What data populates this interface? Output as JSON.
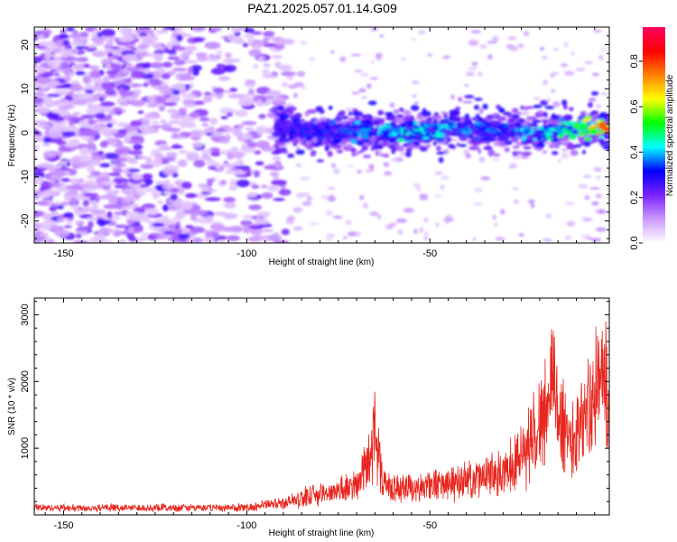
{
  "title": "PAZ1.2025.057.01.14.G09",
  "chart_data": [
    {
      "type": "heatmap",
      "xlabel": "Height of straight line (km)",
      "ylabel": "Frequency (Hz)",
      "xlim": [
        -158,
        -1
      ],
      "ylim": [
        -25,
        24
      ],
      "xticks": [
        -150,
        -100,
        -50
      ],
      "yticks": [
        -20,
        -10,
        0,
        10,
        20
      ],
      "colorbar": {
        "label": "Normalized spectral amplitude",
        "range": [
          0,
          0.95
        ],
        "ticks": [
          "0.0",
          "0.2",
          "0.4",
          "0.6",
          "0.8"
        ],
        "tick_values": [
          0.0,
          0.2,
          0.4,
          0.6,
          0.8
        ],
        "colors": [
          "#ffffff",
          "#cc99ff",
          "#7a22ff",
          "#0000ff",
          "#00ffff",
          "#00ff00",
          "#ffff00",
          "#ff8000",
          "#ff0000",
          "#ff0066"
        ]
      },
      "ridge": {
        "description_points_x": [
          -92,
          -80,
          -70,
          -60,
          -50,
          -40,
          -30,
          -20,
          -10,
          -1
        ],
        "description_points_y": [
          1.5,
          0,
          0.5,
          0,
          0.5,
          1,
          0.5,
          0,
          1,
          1
        ],
        "amplitude": [
          0.3,
          0.35,
          0.4,
          0.45,
          0.45,
          0.4,
          0.35,
          0.45,
          0.55,
          0.85
        ]
      },
      "grid": false
    },
    {
      "type": "line",
      "xlabel": "Height of straight line (km)",
      "ylabel": "SNR (10 * v/v)",
      "xlim": [
        -158,
        -1
      ],
      "ylim": [
        0,
        3250
      ],
      "xticks": [
        -150,
        -100,
        -50
      ],
      "yticks": [
        1000,
        2000,
        3000
      ],
      "series": [
        {
          "color": "#e8261e",
          "x": [
            -158,
            -150,
            -140,
            -130,
            -120,
            -110,
            -100,
            -95,
            -90,
            -85,
            -80,
            -75,
            -70,
            -68,
            -66,
            -65,
            -63,
            -60,
            -55,
            -50,
            -45,
            -40,
            -35,
            -30,
            -28,
            -25,
            -22,
            -20,
            -18,
            -17,
            -16,
            -14,
            -12,
            -10,
            -8,
            -6,
            -4,
            -2,
            -1
          ],
          "y": [
            130,
            130,
            130,
            130,
            130,
            130,
            130,
            180,
            220,
            300,
            380,
            450,
            520,
            800,
            1050,
            1700,
            600,
            480,
            500,
            520,
            560,
            600,
            700,
            750,
            900,
            1150,
            1400,
            1700,
            1950,
            2200,
            2400,
            1700,
            1400,
            1500,
            1750,
            2000,
            2300,
            2600,
            1200
          ]
        }
      ],
      "grid": false
    }
  ]
}
